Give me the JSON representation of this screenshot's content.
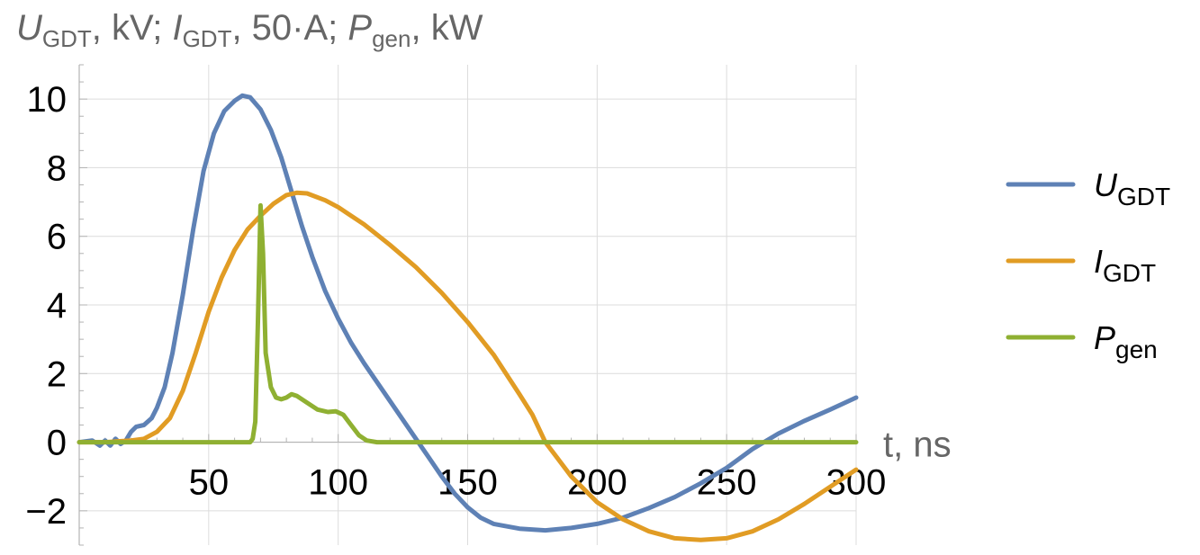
{
  "chart_data": {
    "type": "line",
    "title_parts": {
      "u_sym": "U",
      "u_sub": "GDT",
      "u_unit": ", kV; ",
      "i_sym": "I",
      "i_sub": "GDT",
      "i_unit": ", 50·A; ",
      "p_sym": "P",
      "p_sub": "gen",
      "p_unit": ", kW"
    },
    "xlabel": "t, ns",
    "xlim": [
      0,
      300
    ],
    "ylim": [
      -3,
      11
    ],
    "x_ticks": [
      50,
      100,
      150,
      200,
      250,
      300
    ],
    "y_ticks": [
      -2,
      0,
      2,
      4,
      6,
      8,
      10
    ],
    "y_tick_labels": [
      "−2",
      "0",
      "2",
      "4",
      "6",
      "8",
      "10"
    ],
    "grid": true,
    "legend_position": "right",
    "series": [
      {
        "name_sym": "U",
        "name_sub": "GDT",
        "color": "#5E81B5",
        "points": [
          [
            0,
            0
          ],
          [
            5,
            0.05
          ],
          [
            8,
            -0.1
          ],
          [
            10,
            0.05
          ],
          [
            12,
            -0.1
          ],
          [
            14,
            0.1
          ],
          [
            16,
            -0.05
          ],
          [
            18,
            0.05
          ],
          [
            20,
            0.3
          ],
          [
            22,
            0.45
          ],
          [
            25,
            0.5
          ],
          [
            28,
            0.7
          ],
          [
            30,
            1.0
          ],
          [
            33,
            1.6
          ],
          [
            36,
            2.6
          ],
          [
            40,
            4.3
          ],
          [
            44,
            6.2
          ],
          [
            48,
            7.9
          ],
          [
            52,
            9.0
          ],
          [
            56,
            9.65
          ],
          [
            60,
            9.95
          ],
          [
            63,
            10.1
          ],
          [
            66,
            10.05
          ],
          [
            70,
            9.7
          ],
          [
            74,
            9.1
          ],
          [
            78,
            8.3
          ],
          [
            82,
            7.3
          ],
          [
            86,
            6.3
          ],
          [
            90,
            5.4
          ],
          [
            95,
            4.4
          ],
          [
            100,
            3.6
          ],
          [
            105,
            2.9
          ],
          [
            110,
            2.3
          ],
          [
            115,
            1.75
          ],
          [
            120,
            1.2
          ],
          [
            125,
            0.65
          ],
          [
            130,
            0.1
          ],
          [
            135,
            -0.45
          ],
          [
            140,
            -1.0
          ],
          [
            145,
            -1.5
          ],
          [
            150,
            -1.9
          ],
          [
            155,
            -2.2
          ],
          [
            160,
            -2.38
          ],
          [
            170,
            -2.52
          ],
          [
            180,
            -2.57
          ],
          [
            190,
            -2.5
          ],
          [
            200,
            -2.38
          ],
          [
            210,
            -2.2
          ],
          [
            220,
            -1.92
          ],
          [
            230,
            -1.6
          ],
          [
            240,
            -1.2
          ],
          [
            250,
            -0.75
          ],
          [
            260,
            -0.2
          ],
          [
            270,
            0.25
          ],
          [
            280,
            0.62
          ],
          [
            290,
            0.95
          ],
          [
            300,
            1.3
          ]
        ]
      },
      {
        "name_sym": "I",
        "name_sub": "GDT",
        "color": "#E19C24",
        "points": [
          [
            0,
            0
          ],
          [
            10,
            0
          ],
          [
            20,
            0.05
          ],
          [
            25,
            0.1
          ],
          [
            30,
            0.3
          ],
          [
            35,
            0.7
          ],
          [
            40,
            1.5
          ],
          [
            45,
            2.6
          ],
          [
            50,
            3.8
          ],
          [
            55,
            4.8
          ],
          [
            60,
            5.6
          ],
          [
            65,
            6.2
          ],
          [
            70,
            6.6
          ],
          [
            75,
            6.95
          ],
          [
            80,
            7.2
          ],
          [
            84,
            7.27
          ],
          [
            88,
            7.25
          ],
          [
            95,
            7.05
          ],
          [
            100,
            6.85
          ],
          [
            110,
            6.35
          ],
          [
            120,
            5.75
          ],
          [
            130,
            5.1
          ],
          [
            140,
            4.35
          ],
          [
            150,
            3.5
          ],
          [
            160,
            2.55
          ],
          [
            170,
            1.4
          ],
          [
            175,
            0.8
          ],
          [
            180,
            0.0
          ],
          [
            185,
            -0.5
          ],
          [
            190,
            -1.0
          ],
          [
            200,
            -1.75
          ],
          [
            210,
            -2.25
          ],
          [
            220,
            -2.6
          ],
          [
            230,
            -2.8
          ],
          [
            240,
            -2.85
          ],
          [
            250,
            -2.8
          ],
          [
            260,
            -2.6
          ],
          [
            270,
            -2.25
          ],
          [
            280,
            -1.8
          ],
          [
            290,
            -1.3
          ],
          [
            300,
            -0.8
          ]
        ]
      },
      {
        "name_sym": "P",
        "name_sub": "gen",
        "color": "#8FB032",
        "points": [
          [
            0,
            0
          ],
          [
            66,
            0
          ],
          [
            67,
            0.1
          ],
          [
            68,
            0.6
          ],
          [
            69,
            3.5
          ],
          [
            70,
            6.9
          ],
          [
            71,
            5.5
          ],
          [
            72,
            2.6
          ],
          [
            74,
            1.6
          ],
          [
            76,
            1.3
          ],
          [
            78,
            1.25
          ],
          [
            80,
            1.3
          ],
          [
            82,
            1.4
          ],
          [
            84,
            1.35
          ],
          [
            88,
            1.15
          ],
          [
            92,
            0.95
          ],
          [
            96,
            0.88
          ],
          [
            99,
            0.9
          ],
          [
            102,
            0.8
          ],
          [
            105,
            0.5
          ],
          [
            108,
            0.2
          ],
          [
            111,
            0.05
          ],
          [
            115,
            0
          ],
          [
            300,
            0
          ]
        ]
      }
    ]
  }
}
